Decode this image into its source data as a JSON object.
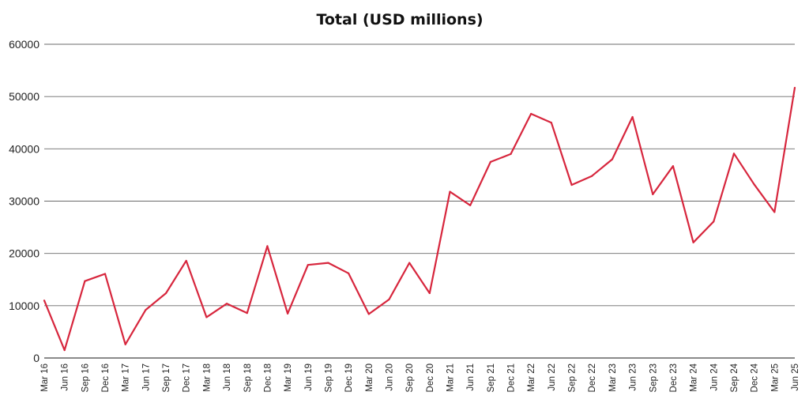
{
  "chart_data": {
    "type": "line",
    "title": "Total (USD millions)",
    "xlabel": "",
    "ylabel": "",
    "ylim": [
      0,
      60000
    ],
    "y_ticks": [
      "0",
      "10000",
      "20000",
      "30000",
      "40000",
      "50000",
      "60000"
    ],
    "grid": "horizontal",
    "categories": [
      "Mar 16",
      "Jun 16",
      "Sep 16",
      "Dec 16",
      "Mar 17",
      "Jun 17",
      "Sep 17",
      "Dec 17",
      "Mar 18",
      "Jun 18",
      "Sep 18",
      "Dec 18",
      "Mar 19",
      "Jun 19",
      "Sep 19",
      "Dec 19",
      "Mar 20",
      "Jun 20",
      "Sep 20",
      "Dec 20",
      "Mar 21",
      "Jun 21",
      "Sep 21",
      "Dec 21",
      "Mar 22",
      "Jun 22",
      "Sep 22",
      "Dec 22",
      "Mar 23",
      "Jun 23",
      "Sep 23",
      "Dec 23",
      "Mar 24",
      "Jun 24",
      "Sep 24",
      "Dec 24",
      "Mar 25",
      "Jun 25"
    ],
    "series": [
      {
        "color": "#d7263d",
        "values": [
          11000,
          1500,
          14700,
          16100,
          2600,
          9200,
          12400,
          18600,
          7800,
          10400,
          8600,
          21400,
          8500,
          17800,
          18200,
          16200,
          8400,
          11200,
          18200,
          12400,
          31800,
          29200,
          37500,
          39000,
          46700,
          45000,
          33100,
          34800,
          38000,
          46100,
          31300,
          36700,
          22100,
          26100,
          39100,
          33200,
          27900,
          51700
        ]
      }
    ]
  }
}
